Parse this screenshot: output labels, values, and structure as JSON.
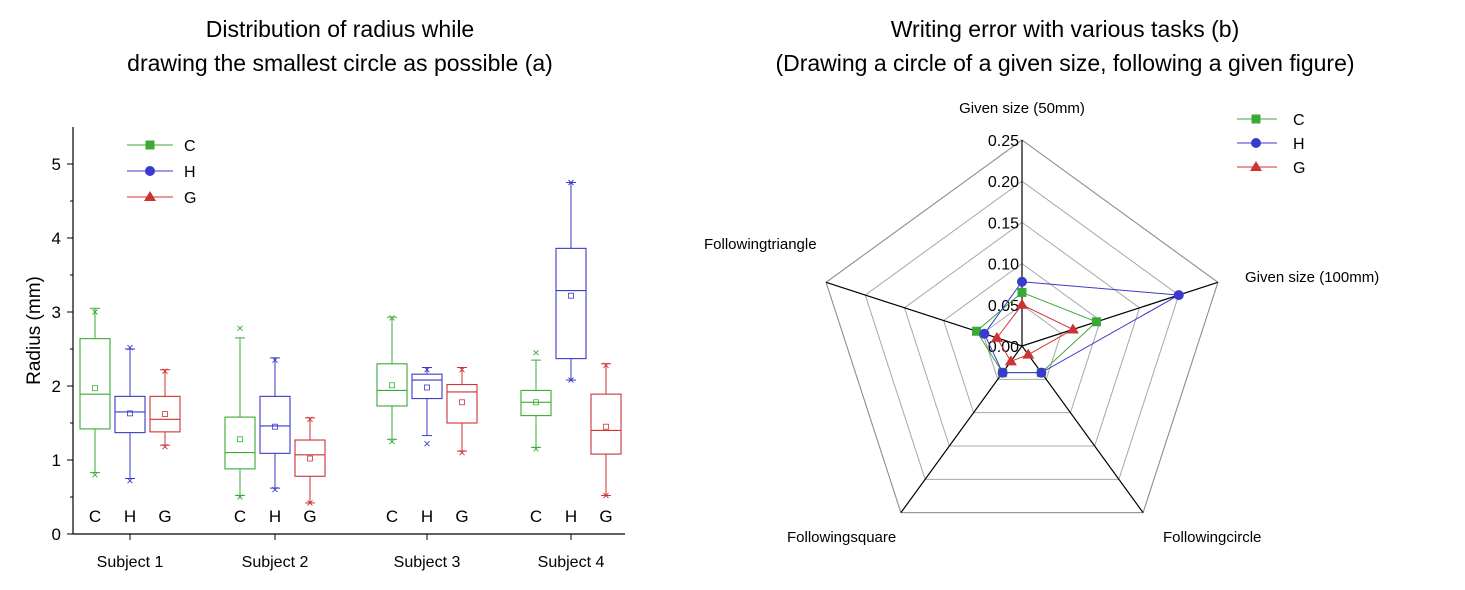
{
  "chart_data": [
    {
      "type": "box",
      "title_line1": "Distribution of radius while",
      "title_line2": "drawing the smallest circle as possible (a)",
      "ylabel": "Radius (mm)",
      "ylim": [
        0,
        5.5
      ],
      "yticks": [
        0,
        1,
        2,
        3,
        4,
        5
      ],
      "groups": [
        "Subject 1",
        "Subject 2",
        "Subject 3",
        "Subject 4"
      ],
      "series_labels": [
        "C",
        "H",
        "G"
      ],
      "colors": {
        "C": "#3aaa35",
        "H": "#3a3acc",
        "G": "#cc3333"
      },
      "legend": [
        {
          "label": "C",
          "marker": "square"
        },
        {
          "label": "H",
          "marker": "circle"
        },
        {
          "label": "G",
          "marker": "triangle"
        }
      ],
      "legend_position": "top-left",
      "boxes": [
        {
          "group": "Subject 1",
          "series": "C",
          "whisker_low": 0.83,
          "q1": 1.42,
          "median": 1.89,
          "q3": 2.64,
          "whisker_high": 3.05,
          "mean": 1.97,
          "min": 0.8,
          "max": 3.0
        },
        {
          "group": "Subject 1",
          "series": "H",
          "whisker_low": 0.75,
          "q1": 1.37,
          "median": 1.65,
          "q3": 1.86,
          "whisker_high": 2.5,
          "mean": 1.63,
          "min": 0.72,
          "max": 2.52
        },
        {
          "group": "Subject 1",
          "series": "G",
          "whisker_low": 1.2,
          "q1": 1.38,
          "median": 1.55,
          "q3": 1.86,
          "whisker_high": 2.22,
          "mean": 1.62,
          "min": 1.18,
          "max": 2.2
        },
        {
          "group": "Subject 2",
          "series": "C",
          "whisker_low": 0.52,
          "q1": 0.88,
          "median": 1.1,
          "q3": 1.58,
          "whisker_high": 2.65,
          "mean": 1.28,
          "min": 0.5,
          "max": 2.78
        },
        {
          "group": "Subject 2",
          "series": "H",
          "whisker_low": 0.62,
          "q1": 1.09,
          "median": 1.46,
          "q3": 1.86,
          "whisker_high": 2.38,
          "mean": 1.45,
          "min": 0.6,
          "max": 2.35
        },
        {
          "group": "Subject 2",
          "series": "G",
          "whisker_low": 0.42,
          "q1": 0.78,
          "median": 1.07,
          "q3": 1.27,
          "whisker_high": 1.57,
          "mean": 1.02,
          "min": 0.42,
          "max": 1.55
        },
        {
          "group": "Subject 3",
          "series": "C",
          "whisker_low": 1.28,
          "q1": 1.73,
          "median": 1.94,
          "q3": 2.3,
          "whisker_high": 2.93,
          "mean": 2.01,
          "min": 1.25,
          "max": 2.92
        },
        {
          "group": "Subject 3",
          "series": "H",
          "whisker_low": 1.33,
          "q1": 1.83,
          "median": 2.08,
          "q3": 2.16,
          "whisker_high": 2.25,
          "mean": 1.98,
          "min": 1.22,
          "max": 2.22
        },
        {
          "group": "Subject 3",
          "series": "G",
          "whisker_low": 1.12,
          "q1": 1.5,
          "median": 1.92,
          "q3": 2.02,
          "whisker_high": 2.25,
          "mean": 1.78,
          "min": 1.1,
          "max": 2.22
        },
        {
          "group": "Subject 4",
          "series": "C",
          "whisker_low": 1.17,
          "q1": 1.6,
          "median": 1.78,
          "q3": 1.94,
          "whisker_high": 2.35,
          "mean": 1.78,
          "min": 1.15,
          "max": 2.45
        },
        {
          "group": "Subject 4",
          "series": "H",
          "whisker_low": 2.08,
          "q1": 2.37,
          "median": 3.29,
          "q3": 3.86,
          "whisker_high": 4.75,
          "mean": 3.22,
          "min": 2.08,
          "max": 4.75
        },
        {
          "group": "Subject 4",
          "series": "G",
          "whisker_low": 0.52,
          "q1": 1.08,
          "median": 1.4,
          "q3": 1.89,
          "whisker_high": 2.3,
          "mean": 1.45,
          "min": 0.52,
          "max": 2.28
        }
      ]
    },
    {
      "type": "radar",
      "title_line1": "Writing error with various tasks (b)",
      "title_line2": "(Drawing a circle of a given size, following a given figure)",
      "axes": [
        "Given size (50mm)",
        "Given size (100mm)",
        "Following circle",
        "Following square",
        "Following triangle"
      ],
      "axis_display": [
        "Given size (50mm)",
        "Given size (100mm)",
        "Followingcircle",
        "Followingsquare",
        "Followingtriangle"
      ],
      "rlim": [
        0,
        0.25
      ],
      "rticks": [
        "0.00",
        "0.05",
        "0.10",
        "0.15",
        "0.20",
        "0.25"
      ],
      "legend_position": "top-right",
      "legend": [
        {
          "label": "C",
          "marker": "square"
        },
        {
          "label": "H",
          "marker": "circle"
        },
        {
          "label": "G",
          "marker": "triangle"
        }
      ],
      "series": [
        {
          "name": "C",
          "color": "#3aaa35",
          "marker": "square",
          "values": [
            0.065,
            0.095,
            0.04,
            0.04,
            0.058
          ]
        },
        {
          "name": "H",
          "color": "#3a3acc",
          "marker": "circle",
          "values": [
            0.078,
            0.2,
            0.04,
            0.04,
            0.048
          ]
        },
        {
          "name": "G",
          "color": "#cc3333",
          "marker": "triangle",
          "values": [
            0.05,
            0.065,
            0.013,
            0.023,
            0.032
          ]
        }
      ]
    }
  ]
}
